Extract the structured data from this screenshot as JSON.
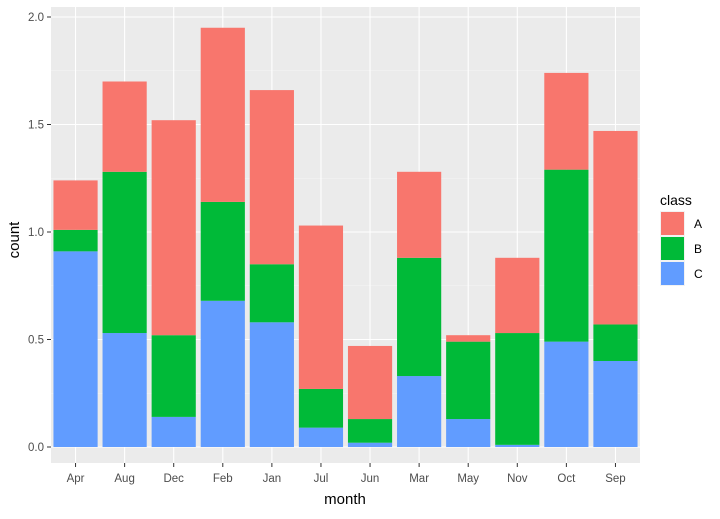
{
  "chart_data": {
    "type": "bar",
    "stacked": true,
    "title": "",
    "xlabel": "month",
    "ylabel": "count",
    "ylim": [
      0,
      2.0
    ],
    "yticks": [
      "0.0",
      "0.5",
      "1.0",
      "1.5",
      "2.0"
    ],
    "categories": [
      "Apr",
      "Aug",
      "Dec",
      "Feb",
      "Jan",
      "Jul",
      "Jun",
      "Mar",
      "May",
      "Nov",
      "Oct",
      "Sep"
    ],
    "legend_title": "class",
    "legend_position": "right",
    "grid": true,
    "series": [
      {
        "name": "C",
        "color": "#619CFF",
        "values": [
          0.91,
          0.53,
          0.14,
          0.68,
          0.58,
          0.09,
          0.02,
          0.33,
          0.13,
          0.01,
          0.49,
          0.4
        ]
      },
      {
        "name": "B",
        "color": "#00BA38",
        "values": [
          0.1,
          0.75,
          0.38,
          0.46,
          0.27,
          0.18,
          0.11,
          0.55,
          0.36,
          0.52,
          0.8,
          0.17
        ]
      },
      {
        "name": "A",
        "color": "#F8766D",
        "values": [
          0.23,
          0.42,
          1.0,
          0.81,
          0.81,
          0.76,
          0.34,
          0.4,
          0.03,
          0.35,
          0.45,
          0.9
        ]
      }
    ],
    "legend_order": [
      "A",
      "B",
      "C"
    ]
  }
}
